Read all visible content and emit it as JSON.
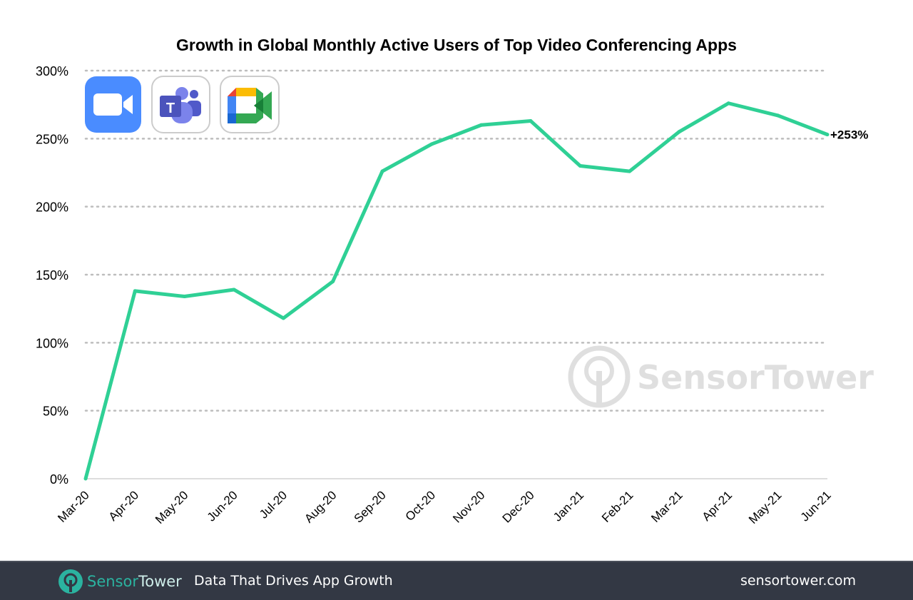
{
  "chart_data": {
    "type": "line",
    "title": "Growth in Global Monthly Active Users of Top Video Conferencing Apps",
    "categories": [
      "Mar-20",
      "Apr-20",
      "May-20",
      "Jun-20",
      "Jul-20",
      "Aug-20",
      "Sep-20",
      "Oct-20",
      "Nov-20",
      "Dec-20",
      "Jan-21",
      "Feb-21",
      "Mar-21",
      "Apr-21",
      "May-21",
      "Jun-21"
    ],
    "values": [
      0,
      138,
      134,
      139,
      118,
      145,
      226,
      246,
      260,
      263,
      230,
      226,
      255,
      276,
      267,
      253
    ],
    "ylim": [
      0,
      300
    ],
    "yticks": [
      "0%",
      "50%",
      "100%",
      "150%",
      "200%",
      "250%",
      "300%"
    ],
    "end_label": "+253%",
    "grid": "horizontal dotted",
    "line_color": "#2fd095",
    "xlabel": "",
    "ylabel": ""
  },
  "logos": [
    "zoom-icon",
    "microsoft-teams-icon",
    "google-meet-icon"
  ],
  "watermark": "SensorTower",
  "footer": {
    "brand_a": "Sensor",
    "brand_b": "Tower",
    "tagline": "Data That Drives App Growth",
    "url": "sensortower.com"
  }
}
